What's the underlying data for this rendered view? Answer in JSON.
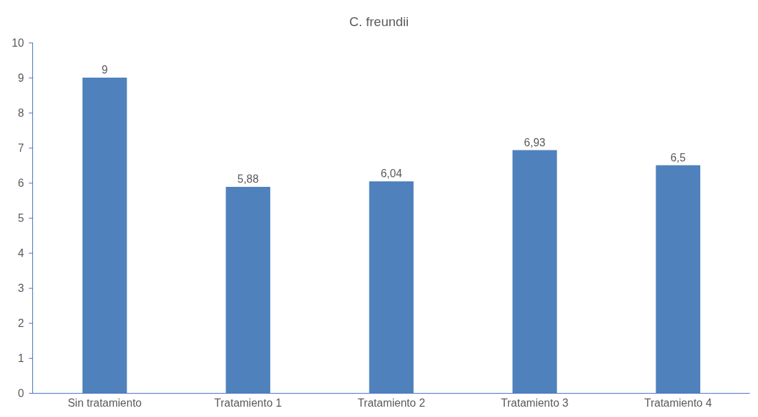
{
  "chart_data": {
    "type": "bar",
    "title": "C. freundii",
    "categories": [
      "Sin tratamiento",
      "Tratamiento 1",
      "Tratamiento 2",
      "Tratamiento 3",
      "Tratamiento 4"
    ],
    "values": [
      9,
      5.88,
      6.04,
      6.93,
      6.5
    ],
    "value_labels": [
      "9",
      "5,88",
      "6,04",
      "6,93",
      "6,5"
    ],
    "color": "#4f81bd",
    "ylim": [
      0,
      10
    ],
    "yticks": [
      0,
      1,
      2,
      3,
      4,
      5,
      6,
      7,
      8,
      9,
      10
    ]
  }
}
